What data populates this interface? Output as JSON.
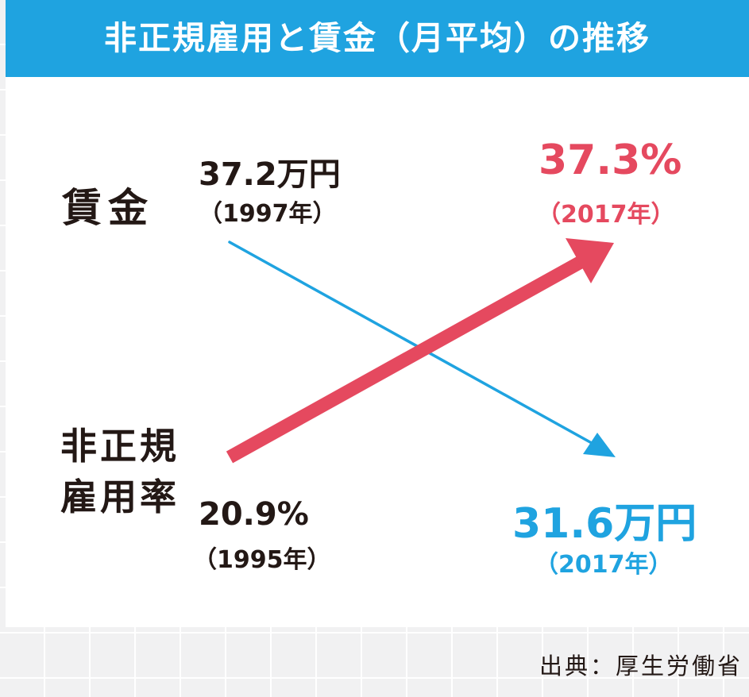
{
  "title": "非正規雇用と賃金（月平均）の推移",
  "labels": {
    "wage": "賃金",
    "nonregular_line1": "非正規",
    "nonregular_line2": "雇用率"
  },
  "chart_data": {
    "type": "line",
    "series": [
      {
        "name": "賃金",
        "color": "#1fa3e0",
        "start": {
          "value": "37.2万円",
          "year": "（1997年）"
        },
        "end": {
          "value": "31.6万円",
          "year": "（2017年）"
        }
      },
      {
        "name": "非正規雇用率",
        "color": "#e5495f",
        "start": {
          "value": "20.9%",
          "year": "（1995年）"
        },
        "end": {
          "value": "37.3%",
          "year": "（2017年）"
        }
      }
    ]
  },
  "source": "出典：厚生労働省"
}
